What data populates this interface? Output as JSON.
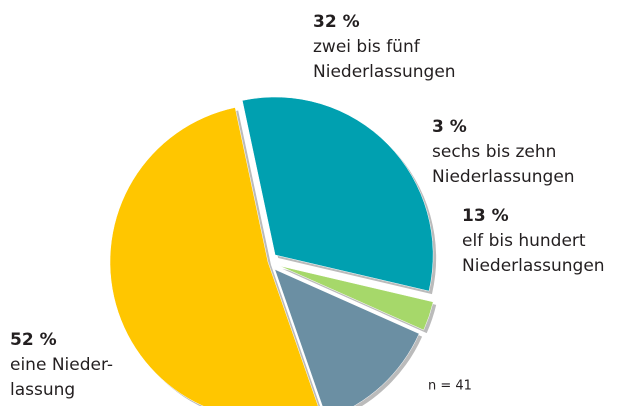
{
  "chart_data": {
    "type": "pie",
    "categories": [
      "zwei bis fünf\nNiederlassungen",
      "sechs bis zehn\nNiederlassungen",
      "elf bis hundert\nNiederlassungen",
      "eine Nieder-\nlassung"
    ],
    "values": [
      32,
      3,
      13,
      52
    ],
    "value_labels": [
      "32 %",
      "3 %",
      "13 %",
      "52 %"
    ],
    "colors": [
      "#00a0b0",
      "#a6d86a",
      "#6b8fa3",
      "#ffc600"
    ],
    "annotation": "n = 41"
  }
}
